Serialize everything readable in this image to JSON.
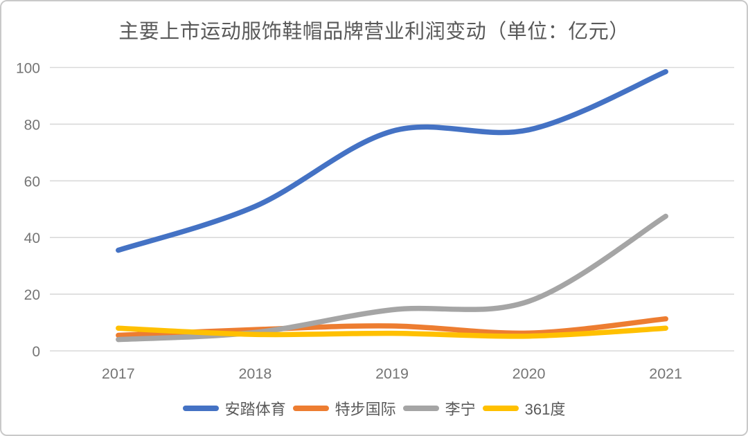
{
  "chart_data": {
    "type": "line",
    "title": "主要上市运动服饰鞋帽品牌营业利润变动（单位：亿元）",
    "categories": [
      "2017",
      "2018",
      "2019",
      "2020",
      "2021"
    ],
    "series": [
      {
        "name": "安踏体育",
        "color": "#4472C4",
        "values": [
          35.5,
          51,
          77.5,
          78,
          98.5
        ]
      },
      {
        "name": "特步国际",
        "color": "#ED7D31",
        "values": [
          5.5,
          7.5,
          8.8,
          6.3,
          11.3
        ]
      },
      {
        "name": "李宁",
        "color": "#A5A5A5",
        "values": [
          4,
          6.5,
          14.5,
          17.5,
          47.5
        ]
      },
      {
        "name": "361度",
        "color": "#FFC000",
        "values": [
          8,
          5.8,
          6.2,
          5.2,
          8
        ]
      }
    ],
    "ylim": [
      0,
      100
    ],
    "ytick_step": 20,
    "ytick_labels": [
      "0",
      "20",
      "40",
      "60",
      "80",
      "100"
    ],
    "xlabel": "",
    "ylabel": "",
    "grid": "horizontal",
    "line_style": "smooth",
    "legend_position": "bottom",
    "colors": {
      "gridline": "#D9D9D9",
      "tick_text": "#757575",
      "title_text": "#595959",
      "card_border": "#C9C9C9",
      "background": "#FFFFFF"
    }
  }
}
